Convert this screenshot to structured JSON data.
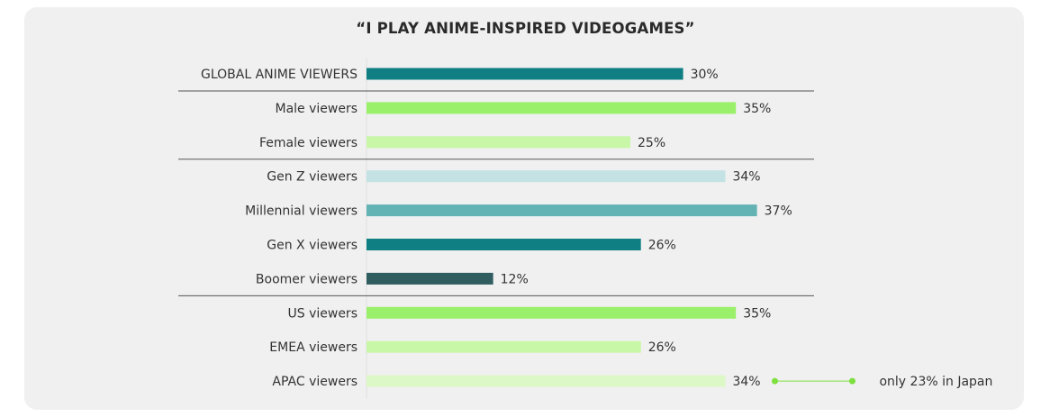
{
  "chart_data": {
    "type": "bar",
    "orientation": "horizontal",
    "title": "“I PLAY ANIME-INSPIRED VIDEOGAMES”",
    "categories": [
      "GLOBAL ANIME VIEWERS",
      "Male viewers",
      "Female viewers",
      "Gen Z viewers",
      "Millennial viewers",
      "Gen X viewers",
      "Boomer viewers",
      "US viewers",
      "EMEA viewers",
      "APAC viewers"
    ],
    "values": [
      30,
      35,
      25,
      34,
      37,
      26,
      12,
      35,
      26,
      34
    ],
    "value_labels": [
      "30%",
      "35%",
      "25%",
      "34%",
      "37%",
      "26%",
      "12%",
      "35%",
      "26%",
      "34%"
    ],
    "colors": [
      "#0f7f83",
      "#9af06a",
      "#c9f7a8",
      "#c4e2e4",
      "#64b3b4",
      "#0f7f83",
      "#2f5d60",
      "#9af06a",
      "#c9f7a8",
      "#dcf8c6"
    ],
    "group_separators_after": [
      0,
      2,
      6
    ],
    "annotation": {
      "category": "APAC viewers",
      "text": "only 23% in Japan",
      "color": "#7ee03f"
    },
    "xlim": [
      0,
      42
    ],
    "grid": false,
    "legend": "none"
  }
}
